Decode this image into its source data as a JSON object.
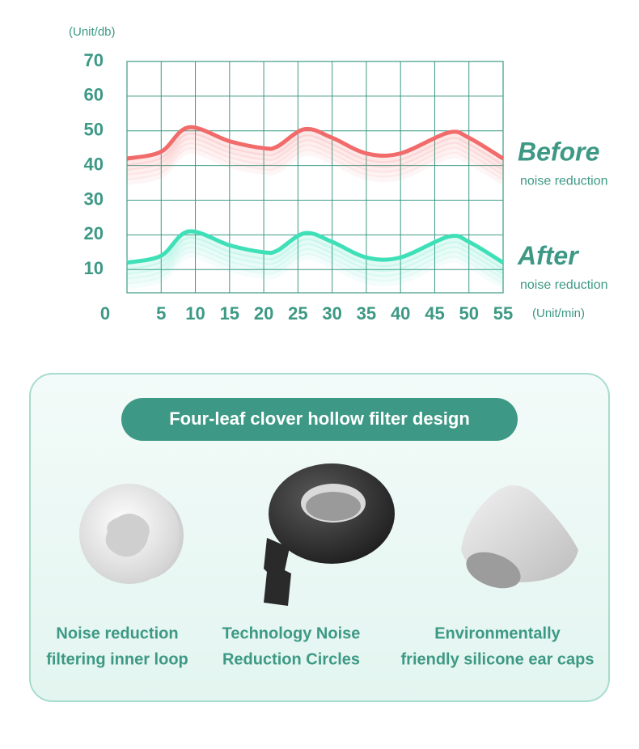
{
  "chart_data": {
    "type": "line",
    "x_label": "(Unit/min)",
    "y_label": "(Unit/db)",
    "x": [
      0,
      5,
      9,
      15,
      20,
      22,
      26,
      30,
      35,
      40,
      47,
      50,
      55
    ],
    "series": [
      {
        "name": "Before",
        "sublabel": "noise reduction",
        "color": "#f26b6b",
        "values": [
          42,
          44,
          51,
          47,
          45,
          45.5,
          50.5,
          48,
          43.5,
          43.5,
          49.5,
          48,
          42
        ]
      },
      {
        "name": "After",
        "sublabel": "noise reduction",
        "color": "#3fe0b8",
        "values": [
          12,
          14,
          21,
          17,
          15,
          15.5,
          20.5,
          18,
          13.5,
          13.5,
          19.5,
          18,
          12
        ]
      }
    ],
    "xlim": [
      0,
      55
    ],
    "xticks": [
      0,
      5,
      10,
      15,
      20,
      25,
      30,
      35,
      40,
      45,
      50,
      55
    ],
    "ylim": [
      3.3,
      70
    ],
    "yticks": [
      10,
      20,
      30,
      40,
      50,
      60,
      70
    ],
    "grid": true
  },
  "panel": {
    "title": "Four-leaf clover hollow filter design",
    "items": [
      {
        "lines": [
          "Noise reduction",
          "filtering inner loop"
        ]
      },
      {
        "lines": [
          "Technology Noise",
          "Reduction Circles"
        ]
      },
      {
        "lines": [
          "Environmentally",
          "friendly silicone ear caps"
        ]
      }
    ]
  }
}
